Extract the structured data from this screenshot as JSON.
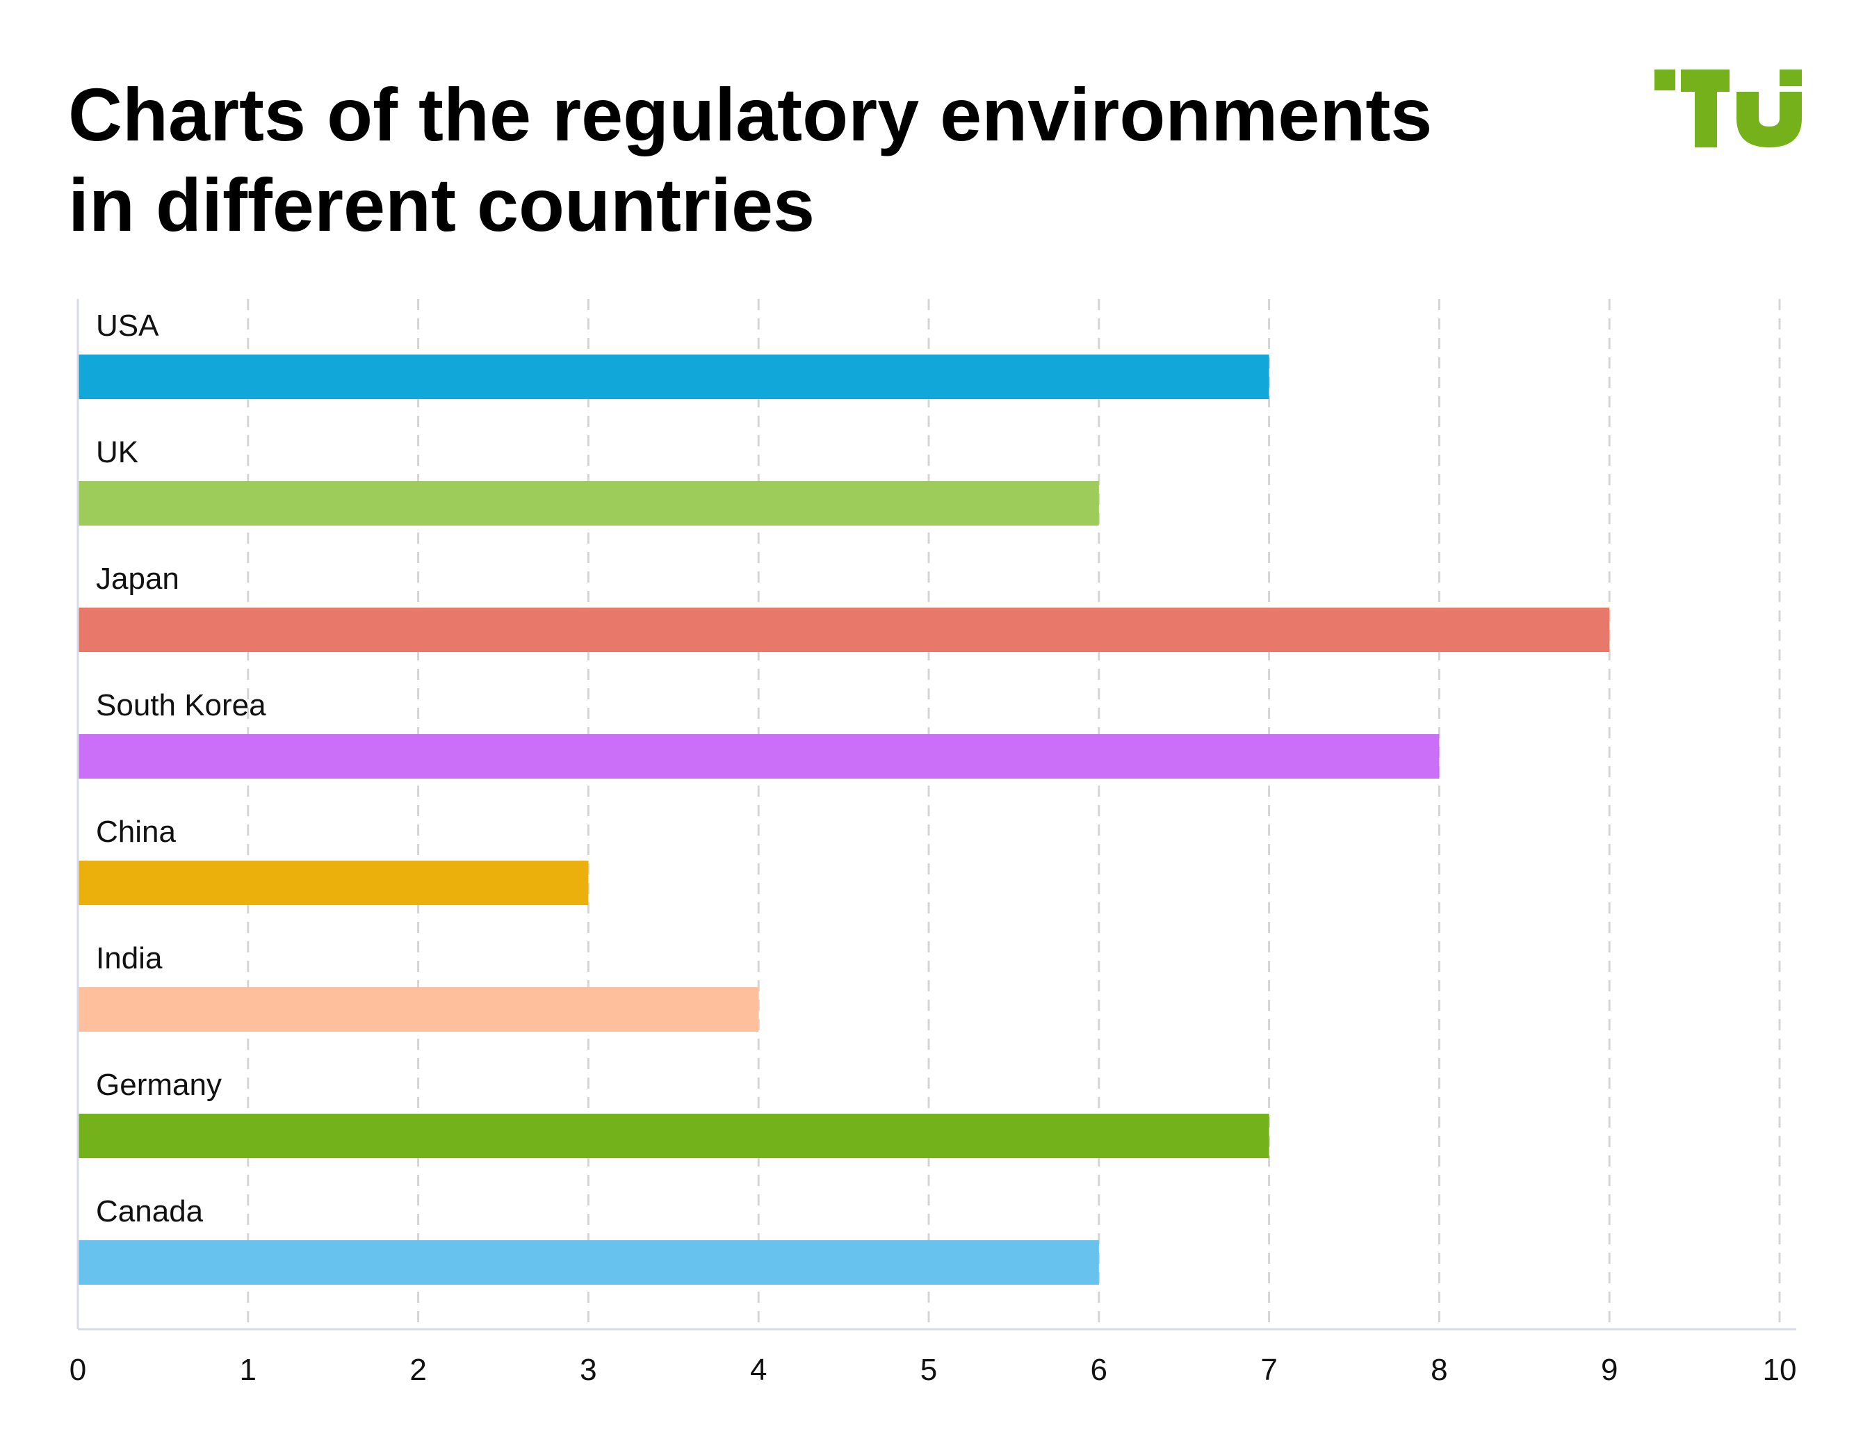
{
  "header": {
    "title_line1": "Charts of the regulatory environments",
    "title_line2": "in different countries",
    "logo_text": "TU",
    "logo_color": "#74b11a"
  },
  "chart_data": {
    "type": "bar",
    "orientation": "horizontal",
    "title": "Charts of the regulatory environments in different countries",
    "categories": [
      "USA",
      "UK",
      "Japan",
      "South Korea",
      "China",
      "India",
      "Germany",
      "Canada"
    ],
    "values": [
      7,
      6,
      9,
      8,
      3,
      4,
      7,
      6
    ],
    "colors": [
      "#12a7d9",
      "#9dcc5a",
      "#e8786a",
      "#cb6ff9",
      "#ebb00c",
      "#fdbf9c",
      "#73b21a",
      "#67c2ed"
    ],
    "xlim": [
      0,
      10
    ],
    "xticks": [
      0,
      1,
      2,
      3,
      4,
      5,
      6,
      7,
      8,
      9,
      10
    ],
    "xlabel": "",
    "ylabel": "",
    "grid": "vertical-dashed",
    "legend": "none"
  }
}
